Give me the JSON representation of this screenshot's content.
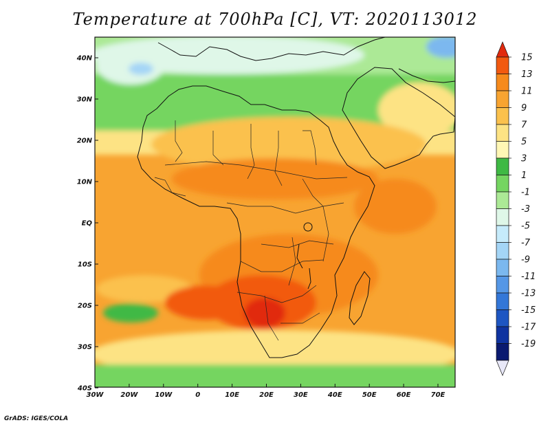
{
  "title": "Temperature at 700hPa [C], VT: 2020113012",
  "credit": "GrADS: IGES/COLA",
  "lat_labels": [
    "40N",
    "30N",
    "20N",
    "10N",
    "EQ",
    "10S",
    "20S",
    "30S",
    "40S"
  ],
  "lon_labels": [
    "30W",
    "20W",
    "10W",
    "0",
    "10E",
    "20E",
    "30E",
    "40E",
    "50E",
    "60E",
    "70E"
  ],
  "colorbar": {
    "labels": [
      "15",
      "13",
      "11",
      "9",
      "7",
      "5",
      "3",
      "1",
      "-1",
      "-3",
      "-5",
      "-7",
      "-9",
      "-11",
      "-13",
      "-15",
      "-17",
      "-19"
    ],
    "colors": [
      "#e12a0e",
      "#f25a10",
      "#f68a1c",
      "#f8a431",
      "#fbc14d",
      "#fde384",
      "#fff7b5",
      "#3fb944",
      "#75d561",
      "#ace996",
      "#dff7e8",
      "#c6ebfb",
      "#a4d5f6",
      "#7bb8ef",
      "#5597e6",
      "#3377d8",
      "#1e56c2",
      "#0f33a0",
      "#0a1a70",
      "#e8e8f8"
    ]
  },
  "map_colors": {
    "ocean_base": "#f8a431",
    "warm_core": "#f25a10",
    "moderate": "#fbc14d",
    "pale": "#fde384",
    "green": "#3fb944",
    "light_green": "#75d561",
    "mint": "#ace996",
    "pale_blue": "#dff7e8",
    "blue": "#a4d5f6"
  }
}
